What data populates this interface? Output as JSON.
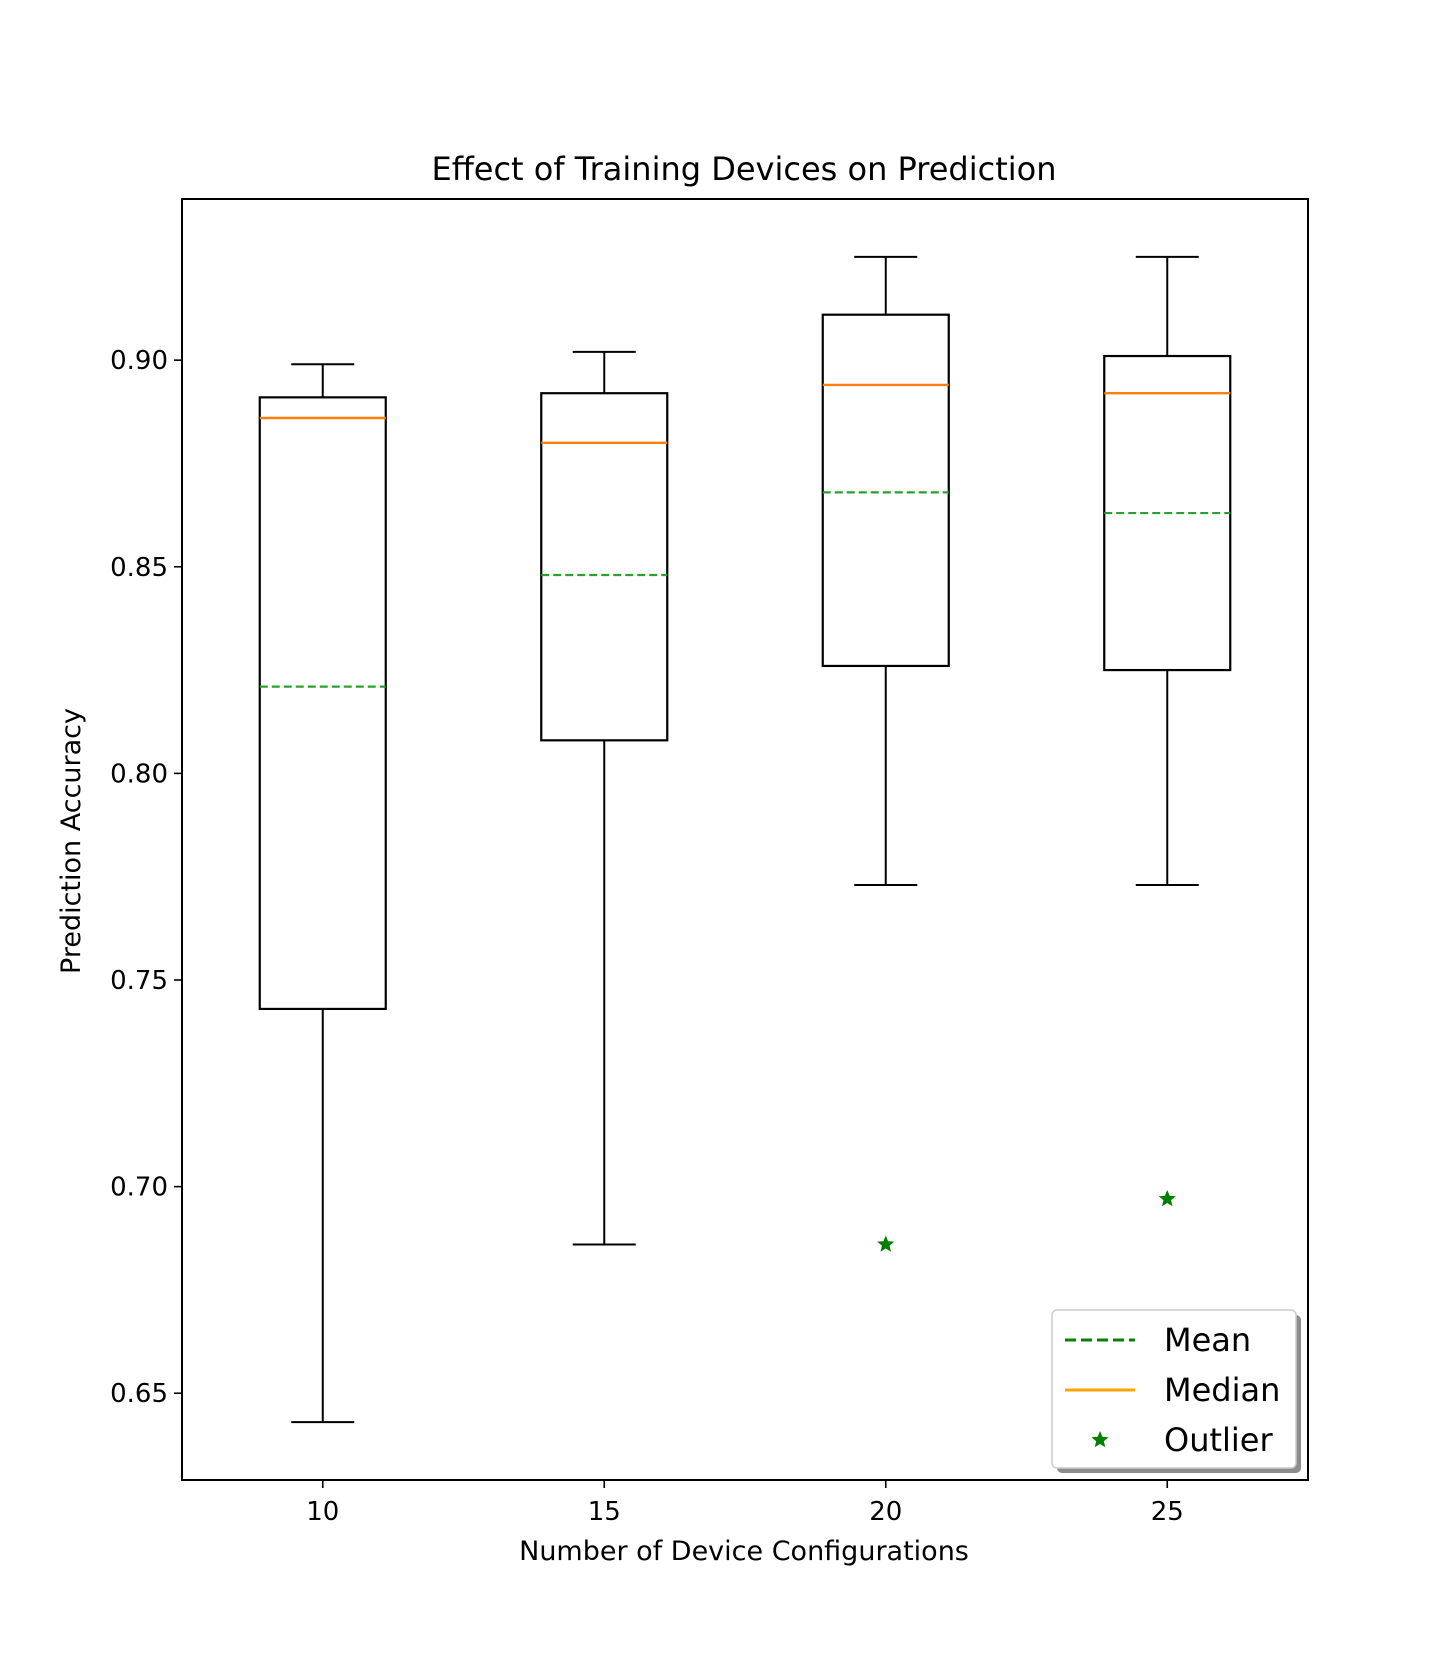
{
  "chart_data": {
    "type": "box",
    "title": "Effect of Training Devices on Prediction",
    "xlabel": "Number of Device Configurations",
    "ylabel": "Prediction Accuracy",
    "categories": [
      "10",
      "15",
      "20",
      "25"
    ],
    "ylim": [
      0.629,
      0.939
    ],
    "yticks": [
      0.65,
      0.7,
      0.75,
      0.8,
      0.85,
      0.9
    ],
    "ytick_labels": [
      "0.65",
      "0.70",
      "0.75",
      "0.80",
      "0.85",
      "0.90"
    ],
    "boxes": [
      {
        "category": "10",
        "whisker_low": 0.643,
        "q1": 0.743,
        "median": 0.886,
        "mean": 0.821,
        "q3": 0.891,
        "whisker_high": 0.899,
        "outliers": []
      },
      {
        "category": "15",
        "whisker_low": 0.686,
        "q1": 0.808,
        "median": 0.88,
        "mean": 0.848,
        "q3": 0.892,
        "whisker_high": 0.902,
        "outliers": []
      },
      {
        "category": "20",
        "whisker_low": 0.773,
        "q1": 0.826,
        "median": 0.894,
        "mean": 0.868,
        "q3": 0.911,
        "whisker_high": 0.925,
        "outliers": [
          0.686
        ]
      },
      {
        "category": "25",
        "whisker_low": 0.773,
        "q1": 0.825,
        "median": 0.892,
        "mean": 0.863,
        "q3": 0.901,
        "whisker_high": 0.925,
        "outliers": [
          0.697
        ]
      }
    ],
    "legend": {
      "position": "bottom-right",
      "entries": [
        {
          "label": "Mean",
          "style": "dashed",
          "color": "#008000"
        },
        {
          "label": "Median",
          "style": "solid",
          "color": "#ffa500"
        },
        {
          "label": "Outlier",
          "style": "star",
          "color": "#008000"
        }
      ]
    },
    "colors": {
      "box": "#000000",
      "median": "#ff7f0e",
      "mean": "#2ca02c",
      "outlier": "#008000"
    }
  }
}
